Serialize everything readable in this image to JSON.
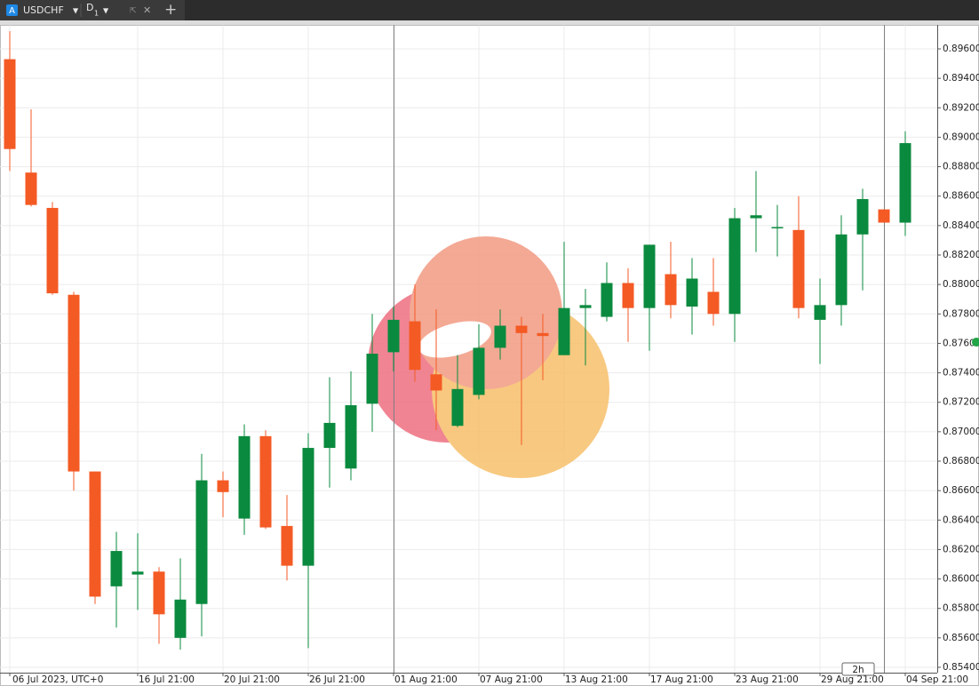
{
  "tab": {
    "icon": "A",
    "symbol": "USDCHF",
    "timeframe": "D",
    "timeframe_sub": "1"
  },
  "time_scale_badge": "2h",
  "chart_data": {
    "type": "candlestick",
    "categories": [
      "06 Jul 2023, UTC+0",
      null,
      null,
      null,
      null,
      null,
      "16 Jul 21:00",
      null,
      null,
      null,
      "20 Jul 21:00",
      null,
      null,
      null,
      "26 Jul 21:00",
      null,
      null,
      null,
      "01 Aug 21:00",
      null,
      null,
      null,
      "07 Aug 21:00",
      null,
      null,
      null,
      "13 Aug 21:00",
      null,
      null,
      null,
      "17 Aug 21:00",
      null,
      null,
      null,
      "23 Aug 21:00",
      null,
      null,
      null,
      "29 Aug 21:00",
      null,
      null,
      null,
      "04 Sep 21:00"
    ],
    "open": [
      0.8953,
      0.8876,
      0.8852,
      0.8793,
      0.8673,
      0.8595,
      0.8603,
      0.8605,
      0.856,
      0.8583,
      0.8667,
      0.8641,
      0.8697,
      0.8636,
      0.8609,
      0.8689,
      0.8675,
      0.8719,
      0.8754,
      0.8775,
      0.8739,
      0.8704,
      0.8725,
      0.8757,
      0.8772,
      0.8767,
      0.8752,
      0.8784,
      0.8778,
      0.8801,
      0.8784,
      0.8807,
      0.8785,
      0.8795,
      0.878,
      0.8845,
      0.8839,
      0.8837,
      0.8776,
      0.8786,
      0.8834,
      0.8851,
      0.8842
    ],
    "high": [
      0.8972,
      0.8919,
      0.8856,
      0.8795,
      0.8673,
      0.8632,
      0.8631,
      0.8608,
      0.8614,
      0.8685,
      0.8673,
      0.8705,
      0.8701,
      0.8657,
      0.8699,
      0.8737,
      0.8741,
      0.878,
      0.8785,
      0.88,
      0.8783,
      0.8752,
      0.8773,
      0.8783,
      0.8778,
      0.878,
      0.8829,
      0.8797,
      0.8815,
      0.8811,
      0.8827,
      0.8829,
      0.8818,
      0.8818,
      0.8852,
      0.8877,
      0.8854,
      0.886,
      0.8804,
      0.8847,
      0.8865,
      0.8851,
      0.8904
    ],
    "low": [
      0.8877,
      0.8853,
      0.8793,
      0.866,
      0.8583,
      0.8567,
      0.8579,
      0.8556,
      0.8552,
      0.8561,
      0.8642,
      0.863,
      0.8634,
      0.8599,
      0.8553,
      0.8662,
      0.8667,
      0.87,
      0.8741,
      0.8734,
      0.8701,
      0.8703,
      0.8722,
      0.8749,
      0.8691,
      0.8735,
      0.8752,
      0.8745,
      0.8775,
      0.8761,
      0.8755,
      0.8777,
      0.8766,
      0.8772,
      0.8761,
      0.8822,
      0.8819,
      0.8777,
      0.8746,
      0.8772,
      0.8796,
      0.8842,
      0.8833
    ],
    "close": [
      0.8892,
      0.8854,
      0.8794,
      0.8673,
      0.8588,
      0.8619,
      0.8605,
      0.8576,
      0.8586,
      0.8667,
      0.8659,
      0.8697,
      0.8635,
      0.8609,
      0.8689,
      0.8706,
      0.8718,
      0.8753,
      0.8776,
      0.8742,
      0.8728,
      0.8729,
      0.8757,
      0.8772,
      0.8767,
      0.8765,
      0.8784,
      0.8786,
      0.8801,
      0.8784,
      0.8827,
      0.8786,
      0.8804,
      0.878,
      0.8845,
      0.8847,
      0.8839,
      0.8784,
      0.8786,
      0.8834,
      0.8858,
      0.8842,
      0.8896
    ],
    "up_color": "#0a8a3e",
    "down_color": "#f45a24",
    "ylim": [
      0.8536,
      0.8976
    ],
    "yticks": [
      {
        "value": 0.854,
        "label": "0.85400"
      },
      {
        "value": 0.856,
        "label": "0.85600"
      },
      {
        "value": 0.858,
        "label": "0.85800"
      },
      {
        "value": 0.86,
        "label": "0.86000"
      },
      {
        "value": 0.862,
        "label": "0.86200"
      },
      {
        "value": 0.864,
        "label": "0.86400"
      },
      {
        "value": 0.866,
        "label": "0.86600"
      },
      {
        "value": 0.868,
        "label": "0.86800"
      },
      {
        "value": 0.87,
        "label": "0.87000"
      },
      {
        "value": 0.872,
        "label": "0.87200"
      },
      {
        "value": 0.874,
        "label": "0.87400"
      },
      {
        "value": 0.876,
        "label": "0.87600"
      },
      {
        "value": 0.878,
        "label": "0.87800"
      },
      {
        "value": 0.88,
        "label": "0.88000"
      },
      {
        "value": 0.882,
        "label": "0.88200"
      },
      {
        "value": 0.884,
        "label": "0.88400"
      },
      {
        "value": 0.886,
        "label": "0.88600"
      },
      {
        "value": 0.888,
        "label": "0.88800"
      },
      {
        "value": 0.89,
        "label": "0.89000"
      },
      {
        "value": 0.892,
        "label": "0.89200"
      },
      {
        "value": 0.894,
        "label": "0.89400"
      },
      {
        "value": 0.896,
        "label": "0.89600"
      }
    ],
    "grid": true
  }
}
